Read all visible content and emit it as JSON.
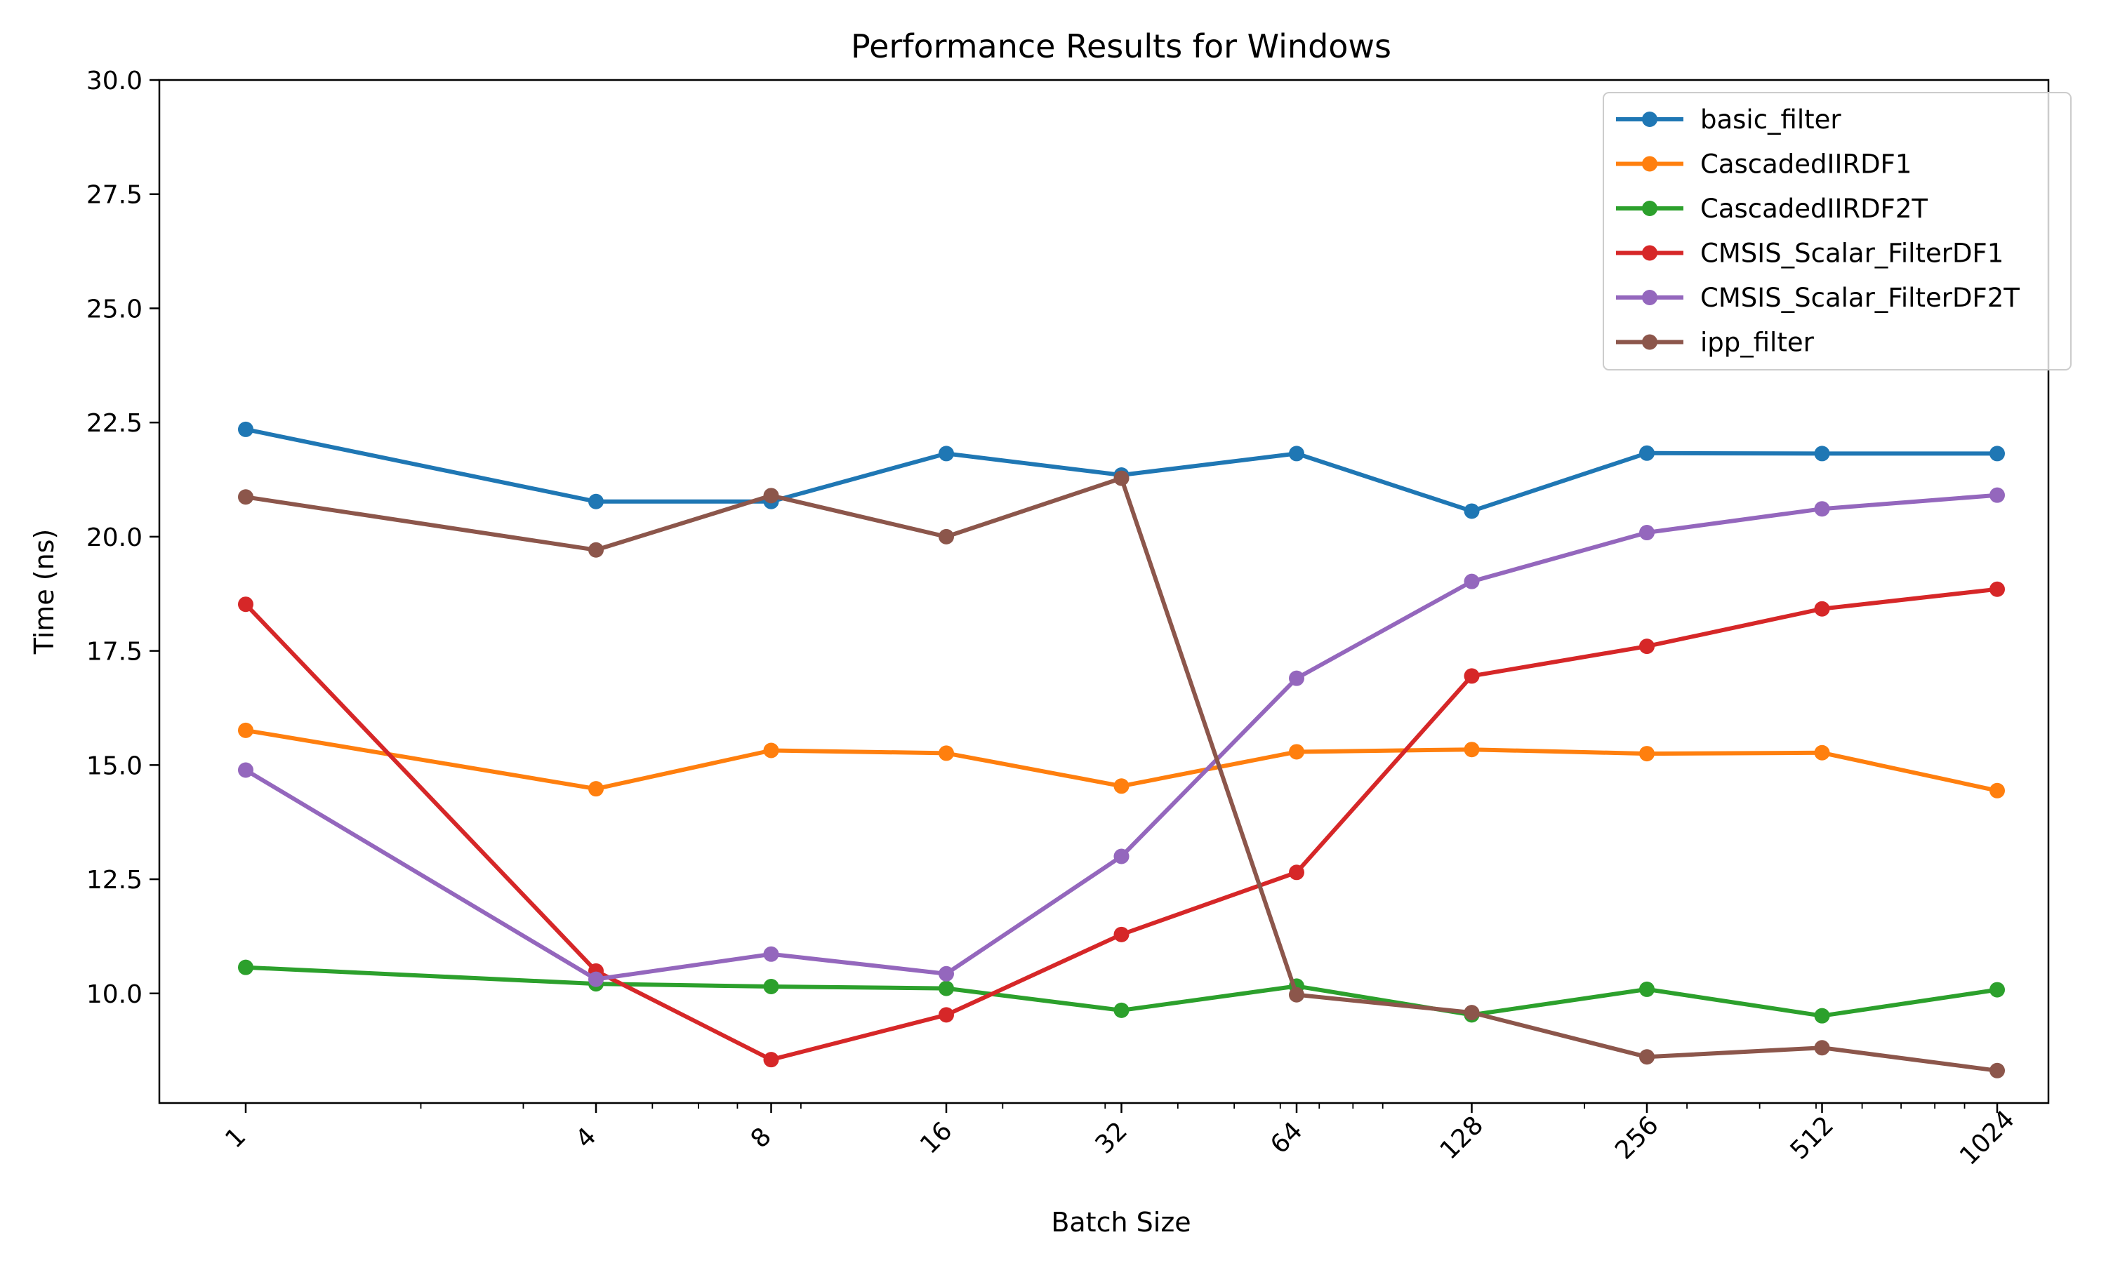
{
  "chart_data": {
    "type": "line",
    "title": "Performance Results for Windows",
    "xlabel": "Batch Size",
    "ylabel": "Time (ns)",
    "x_scale": "log2",
    "x": [
      1,
      4,
      8,
      16,
      32,
      64,
      128,
      256,
      512,
      1024
    ],
    "x_tick_labels": [
      "1",
      "4",
      "8",
      "16",
      "32",
      "64",
      "128",
      "256",
      "512",
      "1024"
    ],
    "ylim": [
      7.6,
      30.0
    ],
    "y_ticks": [
      10.0,
      12.5,
      15.0,
      17.5,
      20.0,
      22.5,
      25.0,
      27.5,
      30.0
    ],
    "y_tick_labels": [
      "10.0",
      "12.5",
      "15.0",
      "17.5",
      "20.0",
      "22.5",
      "25.0",
      "27.5",
      "30.0"
    ],
    "grid": false,
    "legend_position": "top-right",
    "series": [
      {
        "name": "basic_filter",
        "color": "#1f77b4",
        "values": [
          22.35,
          20.77,
          20.77,
          21.82,
          21.35,
          21.82,
          20.56,
          21.83,
          21.82,
          21.82
        ]
      },
      {
        "name": "CascadedIIRDF1",
        "color": "#ff7f0e",
        "values": [
          15.76,
          14.48,
          15.32,
          15.26,
          14.54,
          15.29,
          15.34,
          15.25,
          15.27,
          14.44
        ]
      },
      {
        "name": "CascadedIIRDF2T",
        "color": "#2ca02c",
        "values": [
          10.57,
          10.21,
          10.15,
          10.11,
          9.63,
          10.16,
          9.53,
          10.09,
          9.51,
          10.08
        ]
      },
      {
        "name": "CMSIS_Scalar_FilterDF1",
        "color": "#d62728",
        "values": [
          18.52,
          10.49,
          8.55,
          9.53,
          11.29,
          12.65,
          16.95,
          17.6,
          18.42,
          18.85
        ]
      },
      {
        "name": "CMSIS_Scalar_FilterDF2T",
        "color": "#9467bd",
        "values": [
          14.89,
          10.31,
          10.86,
          10.43,
          13.0,
          16.9,
          19.02,
          20.09,
          20.61,
          20.91
        ]
      },
      {
        "name": "ipp_filter",
        "color": "#8c564b",
        "values": [
          20.87,
          19.71,
          20.9,
          20.0,
          21.28,
          9.97,
          9.58,
          8.61,
          8.81,
          8.31
        ]
      }
    ]
  }
}
